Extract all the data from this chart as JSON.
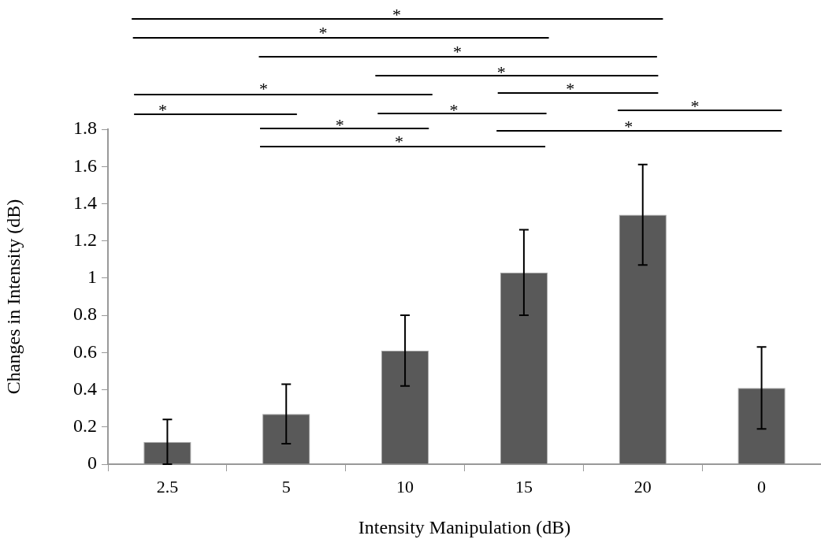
{
  "chart_data": {
    "type": "bar",
    "xlabel": "Intensity Manipulation (dB)",
    "ylabel": "Changes in Intensity (dB)",
    "categories": [
      "2.5",
      "5",
      "10",
      "15",
      "20",
      "0"
    ],
    "values": [
      0.12,
      0.27,
      0.61,
      1.03,
      1.34,
      0.41
    ],
    "errors": [
      0.12,
      0.16,
      0.19,
      0.23,
      0.27,
      0.22
    ],
    "color": "#595959",
    "ylim": [
      0,
      1.8
    ],
    "yticks": [
      0,
      0.2,
      0.4,
      0.6,
      0.8,
      1,
      1.2,
      1.4,
      1.6,
      1.8
    ],
    "grid": false,
    "legend": false,
    "annotations": [
      "*",
      "*",
      "*",
      "*",
      "*",
      "*",
      "*",
      "*",
      "*",
      "*",
      "*",
      "*"
    ]
  }
}
